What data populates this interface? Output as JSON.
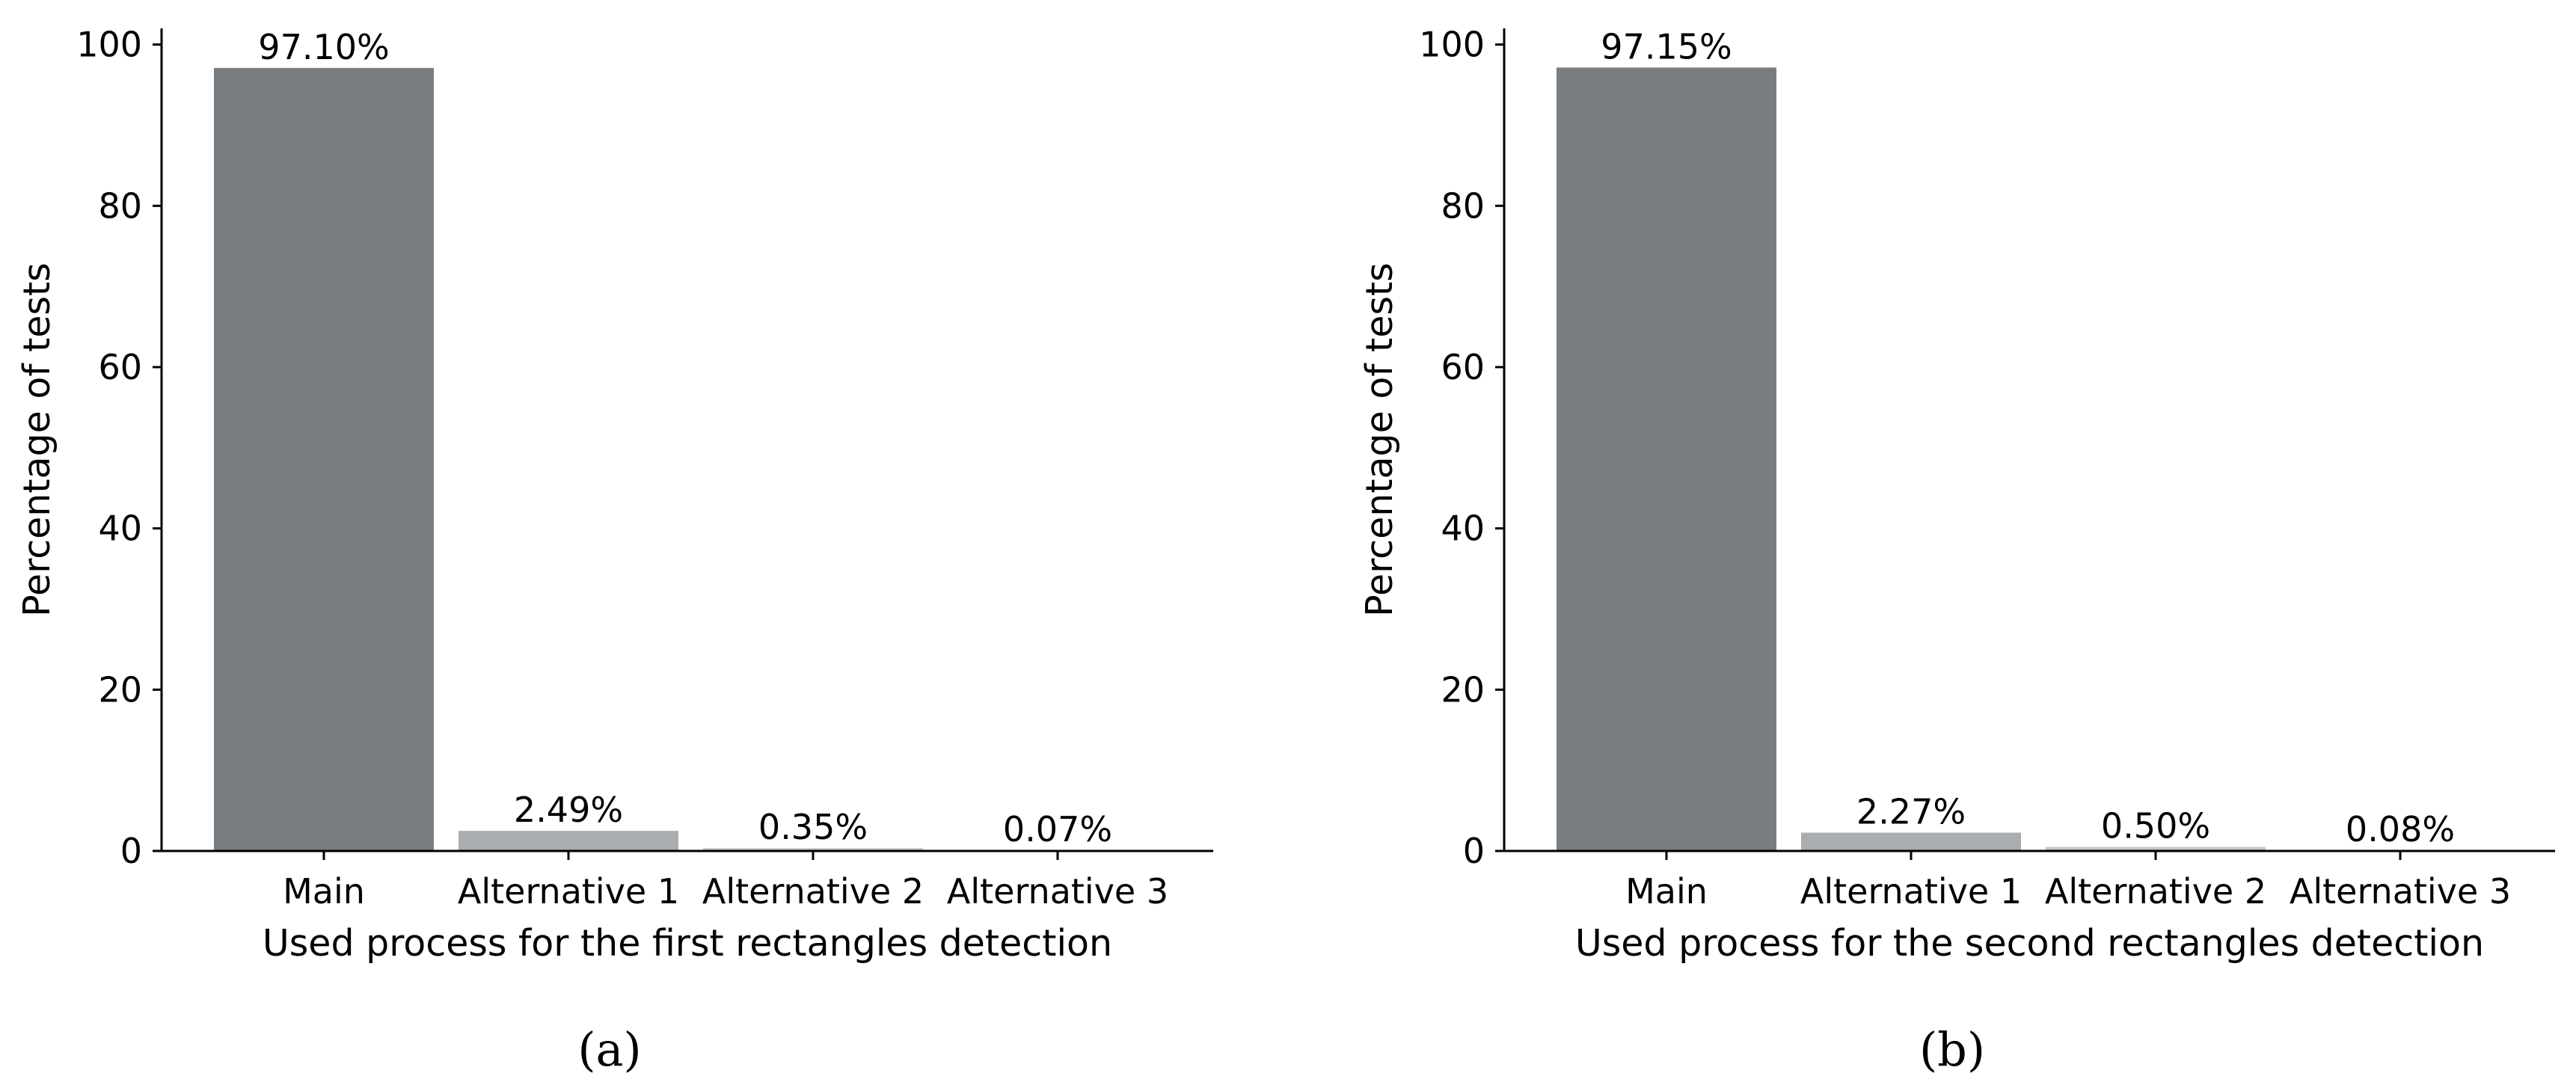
{
  "chart_data": [
    {
      "type": "bar",
      "panel_label": "(a)",
      "categories": [
        "Main",
        "Alternative 1",
        "Alternative 2",
        "Alternative 3"
      ],
      "values": [
        97.1,
        2.49,
        0.35,
        0.07
      ],
      "bar_labels": [
        "97.10%",
        "2.49%",
        "0.35%",
        "0.07%"
      ],
      "bar_colors": [
        "#7a7d80",
        "#aaadaf",
        "#c5c7c9",
        "#d6d8d9"
      ],
      "title": "",
      "xlabel": "Used process for the first rectangles detection",
      "ylabel": "Percentage of tests",
      "ylim": [
        0,
        102
      ],
      "yticks": [
        0,
        20,
        40,
        60,
        80,
        100
      ],
      "grid": false,
      "legend": "none"
    },
    {
      "type": "bar",
      "panel_label": "(b)",
      "categories": [
        "Main",
        "Alternative 1",
        "Alternative 2",
        "Alternative 3"
      ],
      "values": [
        97.15,
        2.27,
        0.5,
        0.08
      ],
      "bar_labels": [
        "97.15%",
        "2.27%",
        "0.50%",
        "0.08%"
      ],
      "bar_colors": [
        "#7a7d80",
        "#aaadaf",
        "#c5c7c9",
        "#d6d8d9"
      ],
      "title": "",
      "xlabel": "Used process for the second rectangles detection",
      "ylabel": "Percentage of tests",
      "ylim": [
        0,
        102
      ],
      "yticks": [
        0,
        20,
        40,
        60,
        80,
        100
      ],
      "grid": false,
      "legend": "none"
    }
  ]
}
